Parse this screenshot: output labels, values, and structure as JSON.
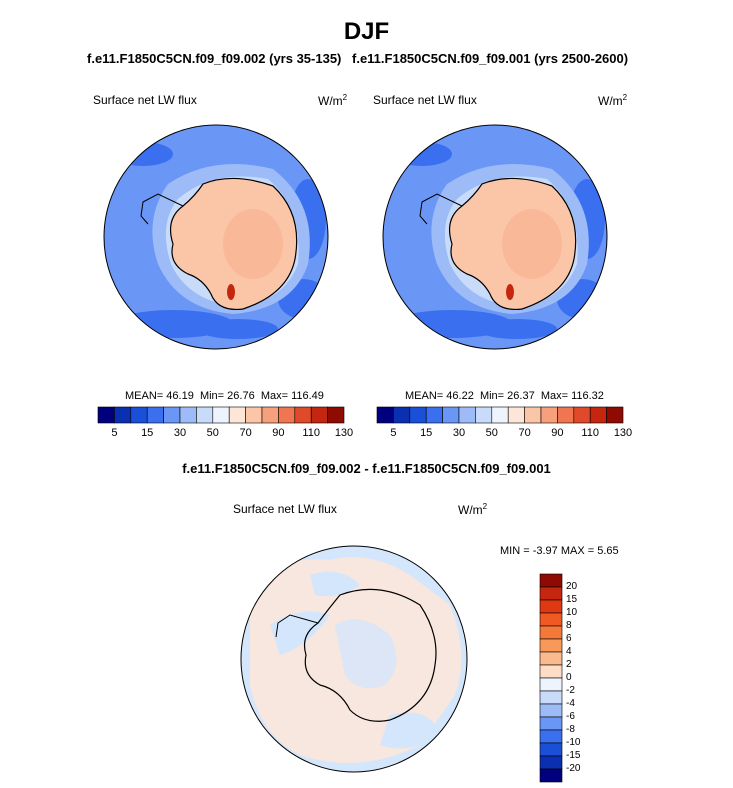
{
  "title": "DJF",
  "panels": [
    {
      "subtitle": "f.e11.F1850C5CN.f09_f09.002 (yrs 35-135)",
      "variable": "Surface net LW flux",
      "units": "W/m",
      "units_exp": "2",
      "stats": {
        "mean_label": "MEAN=",
        "mean": "46.19",
        "min_label": "Min=",
        "min": "26.76",
        "max_label": "Max=",
        "max": "116.49"
      }
    },
    {
      "subtitle": "f.e11.F1850C5CN.f09_f09.001 (yrs 2500-2600)",
      "variable": "Surface net LW flux",
      "units": "W/m",
      "units_exp": "2",
      "stats": {
        "mean_label": "MEAN=",
        "mean": "46.22",
        "min_label": "Min=",
        "min": "26.37",
        "max_label": "Max=",
        "max": "116.32"
      }
    }
  ],
  "colorbar": {
    "labels": [
      "5",
      "15",
      "30",
      "50",
      "70",
      "90",
      "110",
      "130"
    ],
    "colors": [
      "#00007f",
      "#0a2fb0",
      "#1a4fd8",
      "#3a70f0",
      "#6a96f5",
      "#9dbcf7",
      "#c8dcfa",
      "#eef4fd",
      "#fde6d8",
      "#fbc6a8",
      "#f7a07c",
      "#ef7650",
      "#e04a2a",
      "#c4260f",
      "#8f0a00"
    ]
  },
  "difference": {
    "title": "f.e11.F1850C5CN.f09_f09.002 - f.e11.F1850C5CN.f09_f09.001",
    "variable": "Surface net LW flux",
    "units": "W/m",
    "units_exp": "2",
    "stats": {
      "min_label": "MIN =",
      "min": "-3.97",
      "max_label": "MAX =",
      "max": "5.65"
    },
    "colorbar": {
      "labels": [
        "20",
        "15",
        "10",
        "8",
        "6",
        "4",
        "2",
        "0",
        "-2",
        "-4",
        "-6",
        "-8",
        "-10",
        "-15",
        "-20"
      ],
      "colors": [
        "#8f0a00",
        "#c4260f",
        "#e03812",
        "#f05a22",
        "#f67838",
        "#f8995a",
        "#fbb98e",
        "#fdddc6",
        "#eef4fd",
        "#c8dcfa",
        "#9dbcf7",
        "#6a96f5",
        "#3a70f0",
        "#1a4fd8",
        "#0a2fb0",
        "#00007f"
      ]
    }
  }
}
